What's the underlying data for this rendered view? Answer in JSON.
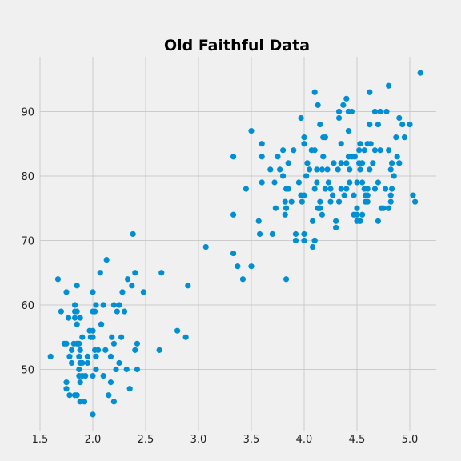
{
  "chart_data": {
    "type": "scatter",
    "title": "Old Faithful Data",
    "xlabel": "",
    "ylabel": "",
    "xlim": [
      1.5,
      5.25
    ],
    "ylim": [
      40.5,
      98.5
    ],
    "x_ticks": [
      1.5,
      2.0,
      2.5,
      3.0,
      3.5,
      4.0,
      4.5,
      5.0
    ],
    "x_tick_labels": [
      "1.5",
      "2.0",
      "2.5",
      "3.0",
      "3.5",
      "4.0",
      "4.5",
      "5.0"
    ],
    "y_ticks": [
      50,
      60,
      70,
      80,
      90
    ],
    "y_tick_labels": [
      "50",
      "60",
      "70",
      "80",
      "90"
    ],
    "grid": true,
    "legend": "none",
    "colors": {
      "background": "#f0f0f0",
      "grid": "#cbcbcb",
      "points": "#008fd5"
    },
    "points": [
      [
        1.6,
        52
      ],
      [
        1.67,
        64
      ],
      [
        1.7,
        59
      ],
      [
        1.73,
        54
      ],
      [
        1.75,
        62
      ],
      [
        1.75,
        54
      ],
      [
        1.75,
        48
      ],
      [
        1.75,
        47
      ],
      [
        1.77,
        58
      ],
      [
        1.78,
        46
      ],
      [
        1.78,
        52
      ],
      [
        1.8,
        53
      ],
      [
        1.8,
        51
      ],
      [
        1.82,
        54
      ],
      [
        1.83,
        60
      ],
      [
        1.83,
        59
      ],
      [
        1.83,
        46
      ],
      [
        1.83,
        58
      ],
      [
        1.85,
        59
      ],
      [
        1.85,
        57
      ],
      [
        1.85,
        54
      ],
      [
        1.85,
        63
      ],
      [
        1.85,
        46
      ],
      [
        1.87,
        54
      ],
      [
        1.87,
        50
      ],
      [
        1.87,
        49
      ],
      [
        1.87,
        52
      ],
      [
        1.88,
        53
      ],
      [
        1.88,
        45
      ],
      [
        1.88,
        48
      ],
      [
        1.88,
        58
      ],
      [
        1.88,
        51
      ],
      [
        1.9,
        51
      ],
      [
        1.9,
        55
      ],
      [
        1.9,
        49
      ],
      [
        1.92,
        45
      ],
      [
        1.93,
        49
      ],
      [
        1.95,
        51
      ],
      [
        1.95,
        52
      ],
      [
        1.97,
        56
      ],
      [
        1.98,
        55
      ],
      [
        2.0,
        56
      ],
      [
        2.0,
        62
      ],
      [
        2.0,
        43
      ],
      [
        2.0,
        59
      ],
      [
        2.0,
        55
      ],
      [
        2.0,
        49
      ],
      [
        2.02,
        59
      ],
      [
        2.02,
        53
      ],
      [
        2.03,
        60
      ],
      [
        2.03,
        52
      ],
      [
        2.03,
        50
      ],
      [
        2.05,
        53
      ],
      [
        2.07,
        65
      ],
      [
        2.08,
        57
      ],
      [
        2.08,
        57
      ],
      [
        2.1,
        49
      ],
      [
        2.1,
        60
      ],
      [
        2.12,
        53
      ],
      [
        2.13,
        67
      ],
      [
        2.15,
        46
      ],
      [
        2.17,
        48
      ],
      [
        2.17,
        52
      ],
      [
        2.18,
        55
      ],
      [
        2.2,
        60
      ],
      [
        2.2,
        54
      ],
      [
        2.2,
        45
      ],
      [
        2.22,
        50
      ],
      [
        2.23,
        59
      ],
      [
        2.25,
        60
      ],
      [
        2.25,
        51
      ],
      [
        2.27,
        55
      ],
      [
        2.28,
        62
      ],
      [
        2.3,
        59
      ],
      [
        2.32,
        50
      ],
      [
        2.33,
        64
      ],
      [
        2.35,
        47
      ],
      [
        2.37,
        63
      ],
      [
        2.38,
        71
      ],
      [
        2.4,
        53
      ],
      [
        2.4,
        65
      ],
      [
        2.42,
        50
      ],
      [
        2.42,
        54
      ],
      [
        2.48,
        62
      ],
      [
        2.63,
        53
      ],
      [
        2.65,
        65
      ],
      [
        2.8,
        56
      ],
      [
        2.88,
        55
      ],
      [
        2.9,
        63
      ],
      [
        3.07,
        69
      ],
      [
        3.33,
        83
      ],
      [
        3.33,
        74
      ],
      [
        3.33,
        68
      ],
      [
        3.37,
        66
      ],
      [
        3.42,
        64
      ],
      [
        3.45,
        78
      ],
      [
        3.5,
        87
      ],
      [
        3.5,
        66
      ],
      [
        3.57,
        73
      ],
      [
        3.58,
        71
      ],
      [
        3.6,
        85
      ],
      [
        3.6,
        83
      ],
      [
        3.6,
        79
      ],
      [
        3.68,
        81
      ],
      [
        3.7,
        71
      ],
      [
        3.72,
        79
      ],
      [
        3.73,
        75
      ],
      [
        3.75,
        83
      ],
      [
        3.77,
        81
      ],
      [
        3.8,
        80
      ],
      [
        3.8,
        84
      ],
      [
        3.82,
        74
      ],
      [
        3.82,
        76
      ],
      [
        3.83,
        75
      ],
      [
        3.83,
        64
      ],
      [
        3.83,
        78
      ],
      [
        3.85,
        82
      ],
      [
        3.85,
        78
      ],
      [
        3.88,
        76
      ],
      [
        3.9,
        84
      ],
      [
        3.92,
        70
      ],
      [
        3.92,
        71
      ],
      [
        3.95,
        79
      ],
      [
        3.97,
        89
      ],
      [
        3.97,
        77
      ],
      [
        3.98,
        76
      ],
      [
        4.0,
        86
      ],
      [
        4.0,
        71
      ],
      [
        4.0,
        77
      ],
      [
        4.0,
        70
      ],
      [
        4.0,
        85
      ],
      [
        4.02,
        80
      ],
      [
        4.03,
        82
      ],
      [
        4.05,
        81
      ],
      [
        4.07,
        84
      ],
      [
        4.08,
        69
      ],
      [
        4.08,
        73
      ],
      [
        4.1,
        93
      ],
      [
        4.1,
        70
      ],
      [
        4.1,
        84
      ],
      [
        4.1,
        78
      ],
      [
        4.1,
        70
      ],
      [
        4.12,
        79
      ],
      [
        4.12,
        81
      ],
      [
        4.13,
        91
      ],
      [
        4.13,
        75
      ],
      [
        4.15,
        88
      ],
      [
        4.15,
        76
      ],
      [
        4.15,
        75
      ],
      [
        4.17,
        81
      ],
      [
        4.17,
        74
      ],
      [
        4.18,
        86
      ],
      [
        4.18,
        83
      ],
      [
        4.2,
        78
      ],
      [
        4.2,
        86
      ],
      [
        4.22,
        81
      ],
      [
        4.23,
        79
      ],
      [
        4.25,
        76
      ],
      [
        4.25,
        78
      ],
      [
        4.27,
        77
      ],
      [
        4.28,
        82
      ],
      [
        4.3,
        73
      ],
      [
        4.3,
        72
      ],
      [
        4.32,
        81
      ],
      [
        4.33,
        90
      ],
      [
        4.33,
        89
      ],
      [
        4.33,
        76
      ],
      [
        4.35,
        82
      ],
      [
        4.35,
        78
      ],
      [
        4.35,
        85
      ],
      [
        4.37,
        91
      ],
      [
        4.38,
        77
      ],
      [
        4.4,
        82
      ],
      [
        4.4,
        92
      ],
      [
        4.4,
        78
      ],
      [
        4.42,
        83
      ],
      [
        4.42,
        90
      ],
      [
        4.42,
        87
      ],
      [
        4.43,
        81
      ],
      [
        4.43,
        79
      ],
      [
        4.45,
        90
      ],
      [
        4.45,
        83
      ],
      [
        4.47,
        77
      ],
      [
        4.47,
        74
      ],
      [
        4.48,
        83
      ],
      [
        4.5,
        75
      ],
      [
        4.5,
        74
      ],
      [
        4.5,
        79
      ],
      [
        4.5,
        73
      ],
      [
        4.52,
        82
      ],
      [
        4.52,
        84
      ],
      [
        4.53,
        85
      ],
      [
        4.53,
        73
      ],
      [
        4.53,
        81
      ],
      [
        4.55,
        82
      ],
      [
        4.55,
        74
      ],
      [
        4.55,
        79
      ],
      [
        4.57,
        84
      ],
      [
        4.57,
        78
      ],
      [
        4.58,
        77
      ],
      [
        4.58,
        76
      ],
      [
        4.6,
        85
      ],
      [
        4.6,
        77
      ],
      [
        4.6,
        78
      ],
      [
        4.6,
        76
      ],
      [
        4.62,
        93
      ],
      [
        4.62,
        88
      ],
      [
        4.62,
        81
      ],
      [
        4.63,
        85
      ],
      [
        4.65,
        82
      ],
      [
        4.67,
        90
      ],
      [
        4.67,
        84
      ],
      [
        4.67,
        78
      ],
      [
        4.7,
        79
      ],
      [
        4.7,
        88
      ],
      [
        4.7,
        73
      ],
      [
        4.72,
        84
      ],
      [
        4.72,
        90
      ],
      [
        4.73,
        75
      ],
      [
        4.75,
        75
      ],
      [
        4.77,
        78
      ],
      [
        4.78,
        90
      ],
      [
        4.8,
        84
      ],
      [
        4.8,
        75
      ],
      [
        4.8,
        94
      ],
      [
        4.82,
        81
      ],
      [
        4.82,
        76
      ],
      [
        4.82,
        77
      ],
      [
        4.83,
        82
      ],
      [
        4.83,
        78
      ],
      [
        4.85,
        80
      ],
      [
        4.87,
        86
      ],
      [
        4.88,
        83
      ],
      [
        4.9,
        89
      ],
      [
        4.9,
        82
      ],
      [
        4.93,
        88
      ],
      [
        4.95,
        86
      ],
      [
        5.0,
        88
      ],
      [
        5.03,
        77
      ],
      [
        5.05,
        76
      ],
      [
        5.1,
        96
      ]
    ]
  }
}
